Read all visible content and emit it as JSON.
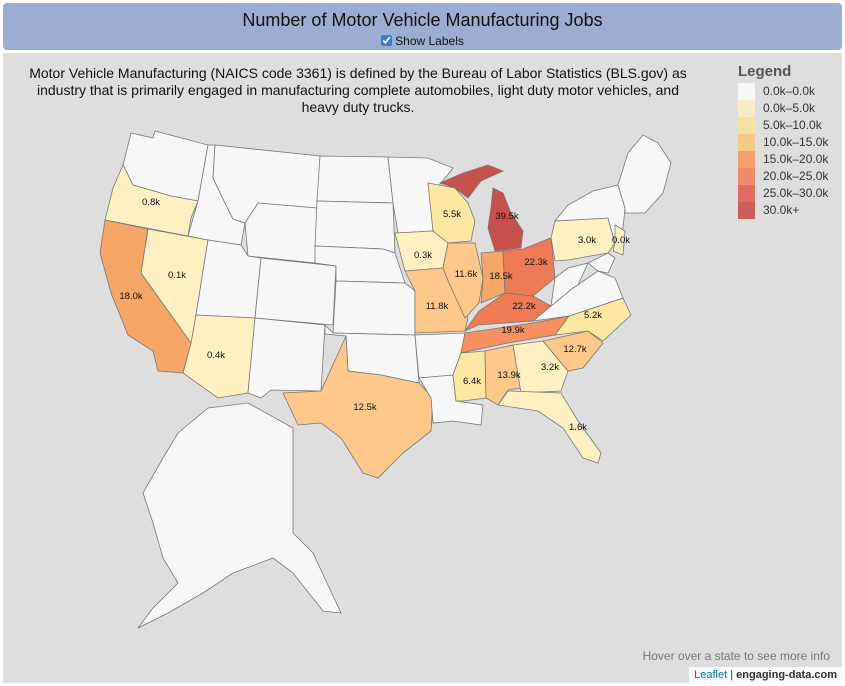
{
  "header": {
    "title": "Number of Motor Vehicle Manufacturing Jobs",
    "show_labels": "Show Labels"
  },
  "description": "Motor Vehicle Manufacturing (NAICS code 3361) is defined by the Bureau of Labor Statistics (BLS.gov) as industry that is primarily engaged in manufacturing complete automobiles, light duty motor vehicles, and heavy duty trucks.",
  "legend": {
    "title": "Legend",
    "items": [
      {
        "label": "0.0k–0.0k",
        "color": "#ffffff"
      },
      {
        "label": "0.0k–5.0k",
        "color": "#fff0bf"
      },
      {
        "label": "5.0k–10.0k",
        "color": "#fee090"
      },
      {
        "label": "10.0k–15.0k",
        "color": "#fdc267"
      },
      {
        "label": "15.0k–20.0k",
        "color": "#fb8c4a"
      },
      {
        "label": "20.0k–25.0k",
        "color": "#f46d43"
      },
      {
        "label": "25.0k–30.0k",
        "color": "#e8423d"
      },
      {
        "label": "30.0k+",
        "color": "#c4322f"
      }
    ]
  },
  "states_labeled": [
    {
      "name": "Oregon",
      "value": "0.8k"
    },
    {
      "name": "Nevada",
      "value": "0.1k"
    },
    {
      "name": "California",
      "value": "18.0k"
    },
    {
      "name": "Arizona",
      "value": "0.4k"
    },
    {
      "name": "Texas",
      "value": "12.5k"
    },
    {
      "name": "Wisconsin",
      "value": "5.5k"
    },
    {
      "name": "Iowa",
      "value": "0.3k"
    },
    {
      "name": "Missouri",
      "value": "11.8k"
    },
    {
      "name": "Illinois",
      "value": "11.6k"
    },
    {
      "name": "Indiana",
      "value": "18.5k"
    },
    {
      "name": "Michigan",
      "value": "39.5k"
    },
    {
      "name": "Ohio",
      "value": "22.3k"
    },
    {
      "name": "Kentucky",
      "value": "22.2k"
    },
    {
      "name": "Tennessee",
      "value": "19.9k"
    },
    {
      "name": "Mississippi",
      "value": "6.4k"
    },
    {
      "name": "Alabama",
      "value": "13.9k"
    },
    {
      "name": "Georgia",
      "value": "3.2k"
    },
    {
      "name": "Florida",
      "value": "1.6k"
    },
    {
      "name": "South Carolina",
      "value": "12.7k"
    },
    {
      "name": "North Carolina",
      "value": "5.2k"
    },
    {
      "name": "Pennsylvania",
      "value": "3.0k"
    },
    {
      "name": "New Jersey",
      "value": "0.0k"
    }
  ],
  "hover_hint": "Hover over a state to see more info",
  "attribution": {
    "leaflet": "Leaflet",
    "sep": " | ",
    "site": "engaging-data.com"
  }
}
